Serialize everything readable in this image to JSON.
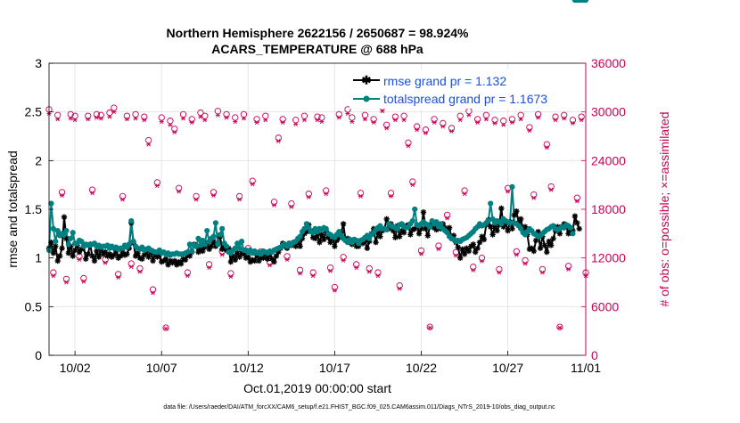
{
  "chart_data": {
    "type": "line",
    "title": [
      "Northern Hemisphere 2622156 / 2650687 = 98.924%",
      "ACARS_TEMPERATURE @ 688 hPa"
    ],
    "xlabel": "Oct.01,2019 00:00:00 start",
    "ylabel": "rmse and totalspread",
    "y2label": "# of obs: o=possible; ×=assimilated",
    "footer": "data file: /Users/raeder/DAI/ATM_forcXX/CAM6_setup/f.e21.FHIST_BGC.f09_025.CAM6assim.011/Diags_NTrS_2019-10/obs_diag_output.nc",
    "xlim": [
      0.5,
      31.5
    ],
    "xticks": [
      {
        "v": 2,
        "label": "10/02"
      },
      {
        "v": 7,
        "label": "10/07"
      },
      {
        "v": 12,
        "label": "10/12"
      },
      {
        "v": 17,
        "label": "10/17"
      },
      {
        "v": 22,
        "label": "10/22"
      },
      {
        "v": 27,
        "label": "10/27"
      },
      {
        "v": 32,
        "label": "11/01"
      }
    ],
    "ylim": [
      0,
      3
    ],
    "yticks": [
      "0",
      "0.5",
      "1",
      "1.5",
      "2",
      "2.5",
      "3"
    ],
    "y2lim": [
      0,
      36000
    ],
    "y2ticks": [
      "0",
      "6000",
      "12000",
      "18000",
      "24000",
      "30000",
      "36000"
    ],
    "legend": {
      "position": "top-right",
      "entries": [
        "rmse grand pr = 1.132",
        "totalspread grand pr = 1.1673"
      ]
    },
    "colors": {
      "rmse": "#000000",
      "spread": "#008080",
      "obs": "#cc0055",
      "legend_text": "#1a4fe6",
      "grid": "#e6e6e6"
    },
    "obs_x": [
      0.5,
      0.75,
      1,
      1.25,
      1.5,
      1.75,
      2,
      2.25,
      2.5,
      2.75,
      3,
      3.25,
      3.5,
      3.75,
      4,
      4.25,
      4.5,
      4.75,
      5,
      5.25,
      5.5,
      5.75,
      6,
      6.25,
      6.5,
      6.75,
      7,
      7.25,
      7.5,
      7.75,
      8,
      8.25,
      8.5,
      8.75,
      9,
      9.25,
      9.5,
      9.75,
      10,
      10.25,
      10.5,
      10.75,
      11,
      11.25,
      11.5,
      11.75,
      12,
      12.25,
      12.5,
      12.75,
      13,
      13.25,
      13.5,
      13.75,
      14,
      14.25,
      14.5,
      14.75,
      15,
      15.25,
      15.5,
      15.75,
      16,
      16.25,
      16.5,
      16.75,
      17,
      17.25,
      17.5,
      17.75,
      18,
      18.25,
      18.5,
      18.75,
      19,
      19.25,
      19.5,
      19.75,
      20,
      20.25,
      20.5,
      20.75,
      21,
      21.25,
      21.5,
      21.75,
      22,
      22.25,
      22.5,
      22.75,
      23,
      23.25,
      23.5,
      23.75,
      24,
      24.25,
      24.5,
      24.75,
      25,
      25.25,
      25.5,
      25.75,
      26,
      26.25,
      26.5,
      26.75,
      27,
      27.25,
      27.5,
      27.75,
      28,
      28.25,
      28.5,
      28.75,
      29,
      29.25,
      29.5,
      29.75,
      30,
      30.25,
      30.5,
      30.75,
      31,
      31.25,
      31.5
    ],
    "obs_possible": [
      30300,
      10200,
      29600,
      20100,
      9400,
      29700,
      29500,
      12200,
      9500,
      29500,
      20400,
      29700,
      29600,
      11800,
      29900,
      30500,
      10000,
      19600,
      29500,
      11300,
      29700,
      10700,
      29400,
      26500,
      8100,
      21300,
      29300,
      3400,
      28900,
      27900,
      20600,
      29700,
      10200,
      29100,
      19600,
      29900,
      29500,
      11200,
      20100,
      30100,
      12800,
      29700,
      10100,
      29300,
      19600,
      29700,
      13200,
      21500,
      29100,
      12800,
      29500,
      11500,
      18900,
      26800,
      29100,
      12200,
      18700,
      29000,
      10500,
      29500,
      19900,
      10200,
      29400,
      29300,
      20300,
      10800,
      8400,
      29700,
      12100,
      30300,
      29300,
      11200,
      20000,
      29600,
      10700,
      29100,
      10200,
      30600,
      28400,
      20000,
      29400,
      8600,
      29500,
      26200,
      21400,
      28200,
      12900,
      27800,
      3500,
      29100,
      13500,
      28600,
      17300,
      28000,
      12700,
      29500,
      20300,
      30100,
      10900,
      29100,
      12000,
      29600,
      16300,
      29000,
      10600,
      28900,
      20600,
      29100,
      12800,
      29600,
      11700,
      28100,
      19800,
      29700,
      10600,
      26000,
      20800,
      29400,
      3500,
      29600,
      11000,
      29000,
      19400,
      29400,
      10200,
      28600,
      12800,
      28400,
      8400,
      29400,
      11300,
      28000,
      18200,
      25800,
      0
    ],
    "obs_assim": [
      29800,
      9800,
      29100,
      19700,
      9000,
      29200,
      29000,
      11800,
      9100,
      29100,
      20000,
      29300,
      29200,
      11400,
      29400,
      30000,
      9600,
      19200,
      29100,
      10900,
      29200,
      10300,
      29000,
      26000,
      7700,
      20900,
      28800,
      3300,
      28400,
      27500,
      20200,
      29200,
      9800,
      28700,
      19200,
      29400,
      29000,
      10800,
      19700,
      29600,
      12400,
      29300,
      9700,
      28800,
      19200,
      29200,
      12800,
      21100,
      28700,
      12400,
      29000,
      11100,
      18500,
      26400,
      28700,
      11800,
      18300,
      28500,
      10100,
      29000,
      19500,
      9800,
      29000,
      28800,
      19900,
      10400,
      8000,
      29300,
      11700,
      29800,
      28800,
      10800,
      19600,
      29100,
      10300,
      28700,
      9800,
      30100,
      28000,
      19600,
      29000,
      8200,
      29000,
      25800,
      21000,
      27800,
      12500,
      27400,
      3400,
      28700,
      13100,
      28200,
      16900,
      27600,
      12300,
      29000,
      19900,
      29600,
      10500,
      28700,
      11600,
      29100,
      15900,
      28600,
      10200,
      28400,
      20200,
      28700,
      12400,
      29100,
      11300,
      27700,
      19400,
      29300,
      10200,
      25600,
      20400,
      29000,
      3400,
      29200,
      10600,
      28600,
      19000,
      29000,
      9800,
      28200,
      12400,
      28000,
      8000,
      29000,
      10900,
      27600,
      17800,
      25400,
      0
    ],
    "line_x": [
      0.5,
      0.625,
      0.75,
      0.875,
      1,
      1.125,
      1.25,
      1.375,
      1.5,
      1.625,
      1.75,
      1.875,
      2,
      2.125,
      2.25,
      2.375,
      2.5,
      2.625,
      2.75,
      2.875,
      3,
      3.125,
      3.25,
      3.375,
      3.5,
      3.625,
      3.75,
      3.875,
      4,
      4.125,
      4.25,
      4.375,
      4.5,
      4.625,
      4.75,
      4.875,
      5,
      5.125,
      5.25,
      5.375,
      5.5,
      5.625,
      5.75,
      5.875,
      6,
      6.125,
      6.25,
      6.375,
      6.5,
      6.625,
      6.75,
      6.875,
      7,
      7.125,
      7.25,
      7.375,
      7.5,
      7.625,
      7.75,
      7.875,
      8,
      8.125,
      8.25,
      8.375,
      8.5,
      8.625,
      8.75,
      8.875,
      9,
      9.125,
      9.25,
      9.375,
      9.5,
      9.625,
      9.75,
      9.875,
      10,
      10.125,
      10.25,
      10.375,
      10.5,
      10.625,
      10.75,
      10.875,
      11,
      11.125,
      11.25,
      11.375,
      11.5,
      11.625,
      11.75,
      11.875,
      12,
      12.125,
      12.25,
      12.375,
      12.5,
      12.625,
      12.75,
      12.875,
      13,
      13.125,
      13.25,
      13.375,
      13.5,
      13.625,
      13.75,
      13.875,
      14,
      14.125,
      14.25,
      14.375,
      14.5,
      14.625,
      14.75,
      14.875,
      15,
      15.125,
      15.25,
      15.375,
      15.5,
      15.625,
      15.75,
      15.875,
      16,
      16.125,
      16.25,
      16.375,
      16.5,
      16.625,
      16.75,
      16.875,
      17,
      17.125,
      17.25,
      17.375,
      17.5,
      17.625,
      17.75,
      17.875,
      18,
      18.125,
      18.25,
      18.375,
      18.5,
      18.625,
      18.75,
      18.875,
      19,
      19.125,
      19.25,
      19.375,
      19.5,
      19.625,
      19.75,
      19.875,
      20,
      20.125,
      20.25,
      20.375,
      20.5,
      20.625,
      20.75,
      20.875,
      21,
      21.125,
      21.25,
      21.375,
      21.5,
      21.625,
      21.75,
      21.875,
      22,
      22.125,
      22.25,
      22.375,
      22.5,
      22.625,
      22.75,
      22.875,
      23,
      23.125,
      23.25,
      23.375,
      23.5,
      23.625,
      23.75,
      23.875,
      24,
      24.125,
      24.25,
      24.375,
      24.5,
      24.625,
      24.75,
      24.875,
      25,
      25.125,
      25.25,
      25.375,
      25.5,
      25.625,
      25.75,
      25.875,
      26,
      26.125,
      26.25,
      26.375,
      26.5,
      26.625,
      26.75,
      26.875,
      27,
      27.125,
      27.25,
      27.375,
      27.5,
      27.625,
      27.75,
      27.875,
      28,
      28.125,
      28.25,
      28.375,
      28.5,
      28.625,
      28.75,
      28.875,
      29,
      29.125,
      29.25,
      29.375,
      29.5,
      29.625,
      29.75,
      29.875,
      30,
      30.125,
      30.25,
      30.375,
      30.5,
      30.625,
      30.75,
      30.875,
      31,
      31.125,
      31.25,
      31.375,
      31.5
    ],
    "rmse": [
      1.1,
      1.16,
      1.05,
      1.12,
      0.97,
      1.02,
      1.1,
      1.42,
      1.2,
      1.05,
      1.12,
      1.02,
      1.08,
      1.13,
      1.06,
      1.09,
      1.12,
      0.99,
      1.04,
      1.14,
      1.02,
      0.97,
      1.07,
      1.01,
      1.1,
      1.04,
      1.06,
      1.02,
      1.04,
      1.01,
      1.03,
      1.07,
      1.0,
      1.02,
      1.06,
      1.03,
      1.04,
      1.1,
      1.36,
      1.15,
      1.02,
      1.05,
      1.0,
      0.99,
      1.03,
      1.06,
      1.01,
      1.08,
      0.97,
      1.04,
      1.01,
      1.03,
      0.96,
      0.97,
      0.99,
      0.93,
      0.97,
      0.95,
      0.97,
      0.93,
      0.96,
      0.94,
      0.99,
      0.98,
      1.03,
      1.02,
      1.06,
      1.14,
      1.12,
      1.06,
      1.1,
      1.07,
      1.11,
      1.15,
      1.09,
      1.12,
      1.17,
      1.12,
      1.14,
      1.22,
      1.09,
      1.11,
      1.08,
      1.1,
      0.96,
      1.02,
      0.98,
      1.05,
      1.01,
      1.05,
      1.04,
      1.0,
      1.01,
      0.96,
      0.98,
      0.97,
      1.03,
      0.97,
      1.01,
      1.0,
      1.05,
      0.99,
      1.04,
      0.99,
      0.96,
      1.02,
      1.06,
      1.1,
      1.15,
      1.12,
      1.1,
      1.15,
      1.13,
      1.16,
      1.12,
      1.17,
      1.12,
      1.2,
      1.25,
      1.27,
      1.34,
      1.28,
      1.21,
      1.2,
      1.25,
      1.16,
      1.24,
      1.19,
      1.28,
      1.21,
      1.16,
      1.22,
      1.12,
      1.18,
      1.21,
      1.26,
      1.35,
      1.18,
      1.2,
      1.16,
      1.14,
      1.17,
      1.12,
      1.12,
      1.17,
      1.15,
      1.18,
      1.1,
      1.17,
      1.25,
      1.3,
      1.16,
      1.26,
      1.22,
      1.28,
      1.3,
      1.4,
      1.3,
      1.35,
      1.28,
      1.21,
      1.33,
      1.22,
      1.28,
      1.26,
      1.33,
      1.34,
      1.24,
      1.29,
      1.3,
      1.34,
      1.25,
      1.3,
      1.47,
      1.3,
      1.23,
      1.32,
      1.36,
      1.31,
      1.29,
      1.33,
      1.3,
      1.35,
      1.31,
      1.28,
      1.31,
      1.2,
      1.23,
      1.16,
      1.11,
      1.0,
      1.09,
      1.04,
      1.1,
      1.07,
      1.12,
      1.14,
      1.06,
      1.1,
      1.16,
      1.22,
      1.19,
      1.34,
      1.39,
      1.32,
      1.24,
      1.32,
      1.28,
      1.34,
      1.51,
      1.32,
      1.36,
      1.28,
      1.37,
      1.3,
      1.44,
      1.48,
      1.36,
      1.4,
      1.29,
      1.32,
      1.24,
      1.09,
      1.1,
      1.07,
      1.18,
      1.27,
      1.1,
      1.22,
      1.13,
      1.06,
      1.17,
      1.13,
      1.2,
      1.28,
      1.32,
      1.25,
      1.32,
      1.35,
      1.32,
      1.25,
      1.3,
      1.28,
      1.43,
      1.36,
      1.3
    ],
    "spread": [
      1.08,
      1.56,
      1.3,
      1.17,
      1.28,
      1.23,
      1.25,
      1.24,
      1.28,
      1.14,
      1.2,
      1.26,
      1.15,
      1.15,
      1.18,
      1.17,
      1.12,
      1.14,
      1.13,
      1.13,
      1.14,
      1.15,
      1.12,
      1.13,
      1.11,
      1.12,
      1.12,
      1.13,
      1.1,
      1.12,
      1.1,
      1.11,
      1.09,
      1.1,
      1.1,
      1.13,
      1.11,
      1.14,
      1.38,
      1.17,
      1.12,
      1.1,
      1.09,
      1.11,
      1.08,
      1.09,
      1.1,
      1.08,
      1.07,
      1.06,
      1.06,
      1.08,
      1.05,
      1.06,
      1.04,
      1.05,
      1.03,
      1.04,
      1.04,
      1.05,
      1.04,
      1.04,
      1.04,
      1.05,
      1.06,
      1.14,
      1.07,
      1.13,
      1.12,
      1.2,
      1.13,
      1.18,
      1.14,
      1.28,
      1.17,
      1.2,
      1.22,
      1.36,
      1.14,
      1.24,
      1.3,
      1.15,
      1.12,
      1.06,
      1.05,
      1.08,
      1.1,
      1.15,
      1.1,
      1.17,
      1.08,
      1.08,
      1.06,
      1.08,
      1.05,
      1.07,
      1.05,
      1.06,
      1.04,
      1.07,
      1.06,
      1.05,
      1.07,
      1.06,
      1.08,
      1.09,
      1.1,
      1.11,
      1.13,
      1.14,
      1.12,
      1.15,
      1.14,
      1.16,
      1.17,
      1.2,
      1.22,
      1.27,
      1.3,
      1.35,
      1.31,
      1.27,
      1.26,
      1.3,
      1.27,
      1.3,
      1.29,
      1.31,
      1.3,
      1.25,
      1.24,
      1.22,
      1.21,
      1.24,
      1.27,
      1.23,
      1.2,
      1.18,
      1.16,
      1.19,
      1.16,
      1.19,
      1.18,
      1.15,
      1.18,
      1.19,
      1.21,
      1.23,
      1.2,
      1.24,
      1.26,
      1.29,
      1.31,
      1.33,
      1.3,
      1.3,
      1.29,
      1.35,
      1.33,
      1.32,
      1.31,
      1.3,
      1.34,
      1.35,
      1.32,
      1.31,
      1.32,
      1.35,
      1.38,
      1.5,
      1.34,
      1.33,
      1.35,
      1.37,
      1.35,
      1.34,
      1.32,
      1.38,
      1.35,
      1.37,
      1.32,
      1.35,
      1.3,
      1.28,
      1.26,
      1.22,
      1.2,
      1.19,
      1.17,
      1.18,
      1.17,
      1.19,
      1.2,
      1.21,
      1.23,
      1.25,
      1.27,
      1.3,
      1.32,
      1.35,
      1.33,
      1.34,
      1.36,
      1.38,
      1.56,
      1.4,
      1.36,
      1.38,
      1.37,
      1.35,
      1.4,
      1.38,
      1.37,
      1.36,
      1.73,
      1.36,
      1.35,
      1.33,
      1.3,
      1.26,
      1.24,
      1.27,
      1.3,
      1.28,
      1.25,
      1.24,
      1.22,
      1.23,
      1.25,
      1.27,
      1.29,
      1.3,
      1.32,
      1.33,
      1.3,
      1.29,
      1.3,
      1.32,
      1.31,
      1.34,
      1.33,
      1.31,
      1.25
    ]
  }
}
